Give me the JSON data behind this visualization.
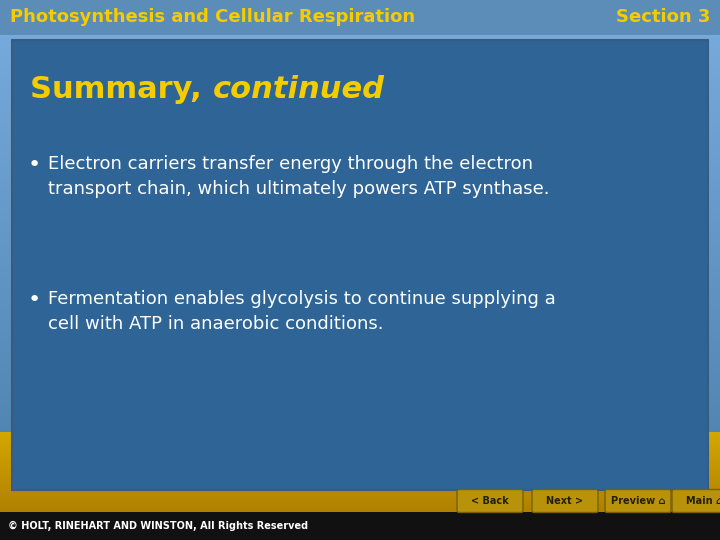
{
  "header_bg_color": "#5b8db8",
  "header_text_left": "Photosynthesis and Cellular Respiration",
  "header_text_right": "Section 3",
  "header_text_color": "#f5cc00",
  "header_font_size": 13,
  "sky_top_color": "#7aade0",
  "sky_bottom_color": "#4a7faa",
  "ground_color_top": "#c8a020",
  "ground_color_bottom": "#d4a800",
  "content_box_color": "#2e6496",
  "content_box_border_color": "#3a5a80",
  "summary_title_normal": "Summary, ",
  "summary_title_italic": "continued",
  "summary_title_color": "#f5cc00",
  "summary_title_size": 22,
  "bullet_color": "#ffffff",
  "bullet_size": 13,
  "bullet_points": [
    "Electron carriers transfer energy through the electron\ntransport chain, which ultimately powers ATP synthase.",
    "Fermentation enables glycolysis to continue supplying a\ncell with ATP in anaerobic conditions."
  ],
  "footer_bg_color": "#111111",
  "footer_text": "© HOLT, RINEHART AND WINSTON, All Rights Reserved",
  "footer_text_color": "#ffffff",
  "footer_font_size": 7,
  "button_bg_color": "#b8920a",
  "button_text_color": "#222200",
  "button_border_color": "#7a6000",
  "button_labels": [
    "< Back",
    "Next >",
    "Preview ⌂",
    "Main ⌂"
  ],
  "button_font_size": 7
}
